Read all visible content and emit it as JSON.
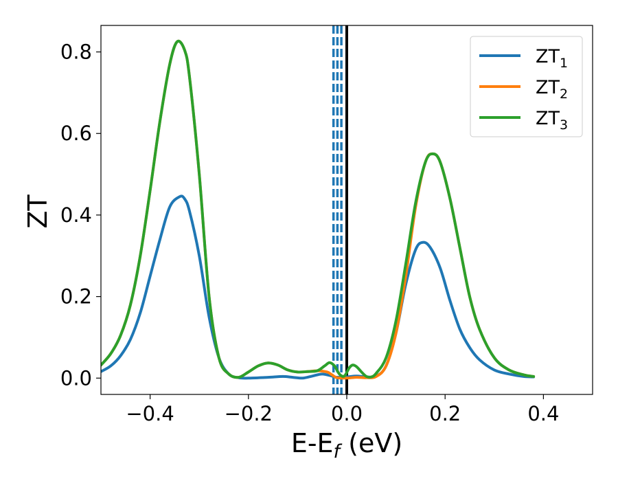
{
  "chart_data": {
    "type": "line",
    "xlabel": "E-E",
    "xlabel_sub": "f",
    "xlabel_unit": " (eV)",
    "ylabel": "ZT",
    "xlim": [
      -0.5,
      0.5
    ],
    "ylim": [
      -0.04,
      0.865
    ],
    "xticks": [
      -0.4,
      -0.2,
      0.0,
      0.2,
      0.4
    ],
    "xtick_labels": [
      "−0.4",
      "−0.2",
      "0.0",
      "0.2",
      "0.4"
    ],
    "yticks": [
      0.0,
      0.2,
      0.4,
      0.6,
      0.8
    ],
    "ytick_labels": [
      "0.0",
      "0.2",
      "0.4",
      "0.6",
      "0.8"
    ],
    "grid": false,
    "legend_position": "top-right",
    "vertical_lines": [
      {
        "x": -0.027,
        "style": "dashed",
        "color": "#1f77b4"
      },
      {
        "x": -0.019,
        "style": "dashed",
        "color": "#1f77b4"
      },
      {
        "x": -0.011,
        "style": "dashed",
        "color": "#1f77b4"
      },
      {
        "x": 0.0,
        "style": "solid",
        "color": "#000000"
      }
    ],
    "series": [
      {
        "name": "ZT",
        "sub": "1",
        "color": "#1f77b4",
        "points": [
          [
            -0.5,
            0.016
          ],
          [
            -0.48,
            0.03
          ],
          [
            -0.46,
            0.055
          ],
          [
            -0.44,
            0.095
          ],
          [
            -0.42,
            0.16
          ],
          [
            -0.4,
            0.25
          ],
          [
            -0.38,
            0.34
          ],
          [
            -0.36,
            0.42
          ],
          [
            -0.34,
            0.445
          ],
          [
            -0.33,
            0.44
          ],
          [
            -0.32,
            0.41
          ],
          [
            -0.3,
            0.3
          ],
          [
            -0.28,
            0.15
          ],
          [
            -0.26,
            0.05
          ],
          [
            -0.24,
            0.01
          ],
          [
            -0.22,
            0.001
          ],
          [
            -0.2,
            0.0
          ],
          [
            -0.16,
            0.002
          ],
          [
            -0.13,
            0.004
          ],
          [
            -0.11,
            0.002
          ],
          [
            -0.09,
            0.0
          ],
          [
            -0.07,
            0.005
          ],
          [
            -0.05,
            0.01
          ],
          [
            -0.03,
            0.005
          ],
          [
            -0.02,
            0.002
          ],
          [
            0.0,
            0.003
          ],
          [
            0.02,
            0.005
          ],
          [
            0.04,
            0.003
          ],
          [
            0.06,
            0.005
          ],
          [
            0.08,
            0.03
          ],
          [
            0.1,
            0.11
          ],
          [
            0.12,
            0.23
          ],
          [
            0.14,
            0.315
          ],
          [
            0.155,
            0.333
          ],
          [
            0.17,
            0.32
          ],
          [
            0.19,
            0.27
          ],
          [
            0.21,
            0.19
          ],
          [
            0.23,
            0.12
          ],
          [
            0.25,
            0.075
          ],
          [
            0.27,
            0.045
          ],
          [
            0.3,
            0.02
          ],
          [
            0.33,
            0.01
          ],
          [
            0.36,
            0.004
          ],
          [
            0.38,
            0.003
          ]
        ]
      },
      {
        "name": "ZT",
        "sub": "2",
        "color": "#ff7f0e",
        "points": [
          [
            -0.5,
            0.032
          ],
          [
            -0.48,
            0.06
          ],
          [
            -0.46,
            0.105
          ],
          [
            -0.44,
            0.18
          ],
          [
            -0.42,
            0.3
          ],
          [
            -0.4,
            0.46
          ],
          [
            -0.38,
            0.63
          ],
          [
            -0.36,
            0.77
          ],
          [
            -0.345,
            0.825
          ],
          [
            -0.33,
            0.805
          ],
          [
            -0.32,
            0.74
          ],
          [
            -0.3,
            0.5
          ],
          [
            -0.28,
            0.2
          ],
          [
            -0.26,
            0.05
          ],
          [
            -0.24,
            0.01
          ],
          [
            -0.22,
            0.002
          ],
          [
            -0.2,
            0.015
          ],
          [
            -0.18,
            0.03
          ],
          [
            -0.16,
            0.037
          ],
          [
            -0.14,
            0.032
          ],
          [
            -0.12,
            0.02
          ],
          [
            -0.1,
            0.015
          ],
          [
            -0.08,
            0.016
          ],
          [
            -0.06,
            0.018
          ],
          [
            -0.04,
            0.015
          ],
          [
            -0.03,
            0.008
          ],
          [
            -0.02,
            0.001
          ],
          [
            0.0,
            0.0
          ],
          [
            0.02,
            0.002
          ],
          [
            0.04,
            0.001
          ],
          [
            0.06,
            0.004
          ],
          [
            0.08,
            0.03
          ],
          [
            0.1,
            0.11
          ],
          [
            0.12,
            0.25
          ],
          [
            0.14,
            0.42
          ],
          [
            0.16,
            0.53
          ],
          [
            0.175,
            0.55
          ],
          [
            0.19,
            0.53
          ],
          [
            0.21,
            0.44
          ],
          [
            0.23,
            0.32
          ],
          [
            0.25,
            0.2
          ],
          [
            0.27,
            0.12
          ],
          [
            0.3,
            0.05
          ],
          [
            0.33,
            0.02
          ],
          [
            0.36,
            0.008
          ],
          [
            0.38,
            0.004
          ]
        ]
      },
      {
        "name": "ZT",
        "sub": "3",
        "color": "#2ca02c",
        "points": [
          [
            -0.5,
            0.032
          ],
          [
            -0.48,
            0.06
          ],
          [
            -0.46,
            0.105
          ],
          [
            -0.44,
            0.18
          ],
          [
            -0.42,
            0.3
          ],
          [
            -0.4,
            0.46
          ],
          [
            -0.38,
            0.63
          ],
          [
            -0.36,
            0.77
          ],
          [
            -0.345,
            0.825
          ],
          [
            -0.33,
            0.805
          ],
          [
            -0.32,
            0.74
          ],
          [
            -0.3,
            0.5
          ],
          [
            -0.28,
            0.2
          ],
          [
            -0.26,
            0.05
          ],
          [
            -0.24,
            0.01
          ],
          [
            -0.22,
            0.002
          ],
          [
            -0.2,
            0.015
          ],
          [
            -0.18,
            0.03
          ],
          [
            -0.16,
            0.037
          ],
          [
            -0.14,
            0.032
          ],
          [
            -0.12,
            0.02
          ],
          [
            -0.1,
            0.015
          ],
          [
            -0.08,
            0.016
          ],
          [
            -0.06,
            0.018
          ],
          [
            -0.045,
            0.03
          ],
          [
            -0.035,
            0.038
          ],
          [
            -0.025,
            0.03
          ],
          [
            -0.015,
            0.01
          ],
          [
            -0.005,
            0.005
          ],
          [
            0.005,
            0.025
          ],
          [
            0.012,
            0.032
          ],
          [
            0.02,
            0.028
          ],
          [
            0.03,
            0.015
          ],
          [
            0.04,
            0.004
          ],
          [
            0.05,
            0.003
          ],
          [
            0.06,
            0.012
          ],
          [
            0.08,
            0.05
          ],
          [
            0.1,
            0.14
          ],
          [
            0.12,
            0.28
          ],
          [
            0.14,
            0.43
          ],
          [
            0.16,
            0.53
          ],
          [
            0.175,
            0.55
          ],
          [
            0.19,
            0.53
          ],
          [
            0.21,
            0.44
          ],
          [
            0.23,
            0.32
          ],
          [
            0.25,
            0.2
          ],
          [
            0.27,
            0.12
          ],
          [
            0.3,
            0.05
          ],
          [
            0.33,
            0.02
          ],
          [
            0.36,
            0.008
          ],
          [
            0.38,
            0.004
          ]
        ]
      }
    ]
  }
}
